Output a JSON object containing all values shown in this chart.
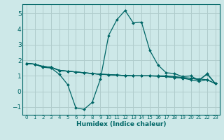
{
  "xlabel": "Humidex (Indice chaleur)",
  "bg_color": "#cde8e8",
  "line_color": "#006666",
  "grid_color": "#b0cccc",
  "xlim": [
    -0.5,
    23.5
  ],
  "ylim": [
    -1.5,
    5.6
  ],
  "yticks": [
    -1,
    0,
    1,
    2,
    3,
    4,
    5
  ],
  "xticks": [
    0,
    1,
    2,
    3,
    4,
    5,
    6,
    7,
    8,
    9,
    10,
    11,
    12,
    13,
    14,
    15,
    16,
    17,
    18,
    19,
    20,
    21,
    22,
    23
  ],
  "series": [
    {
      "x": [
        0,
        1,
        2,
        3,
        4,
        5,
        6,
        7,
        8,
        9,
        10,
        11,
        12,
        13,
        14,
        15,
        16,
        17,
        18,
        19,
        20,
        21,
        22,
        23
      ],
      "y": [
        1.8,
        1.75,
        1.55,
        1.5,
        1.1,
        0.45,
        -1.05,
        -1.15,
        -0.7,
        0.8,
        3.6,
        4.6,
        5.2,
        4.4,
        4.45,
        2.65,
        1.7,
        1.2,
        1.15,
        0.95,
        1.0,
        0.7,
        1.15,
        0.5
      ]
    },
    {
      "x": [
        0,
        1,
        2,
        3,
        4,
        5,
        6,
        7,
        8,
        9,
        10,
        11,
        12,
        13,
        14,
        15,
        16,
        17,
        18,
        19,
        20,
        21,
        22,
        23
      ],
      "y": [
        1.8,
        1.75,
        1.6,
        1.55,
        1.35,
        1.3,
        1.25,
        1.2,
        1.15,
        1.1,
        1.08,
        1.05,
        1.02,
        1.0,
        1.0,
        1.0,
        1.0,
        1.0,
        0.95,
        0.9,
        0.85,
        0.8,
        0.75,
        0.5
      ]
    },
    {
      "x": [
        0,
        1,
        2,
        3,
        4,
        5,
        6,
        7,
        8,
        9,
        10,
        11,
        12,
        13,
        14,
        15,
        16,
        17,
        18,
        19,
        20,
        21,
        22,
        23
      ],
      "y": [
        1.8,
        1.75,
        1.6,
        1.55,
        1.35,
        1.3,
        1.25,
        1.2,
        1.15,
        1.1,
        1.08,
        1.05,
        1.02,
        1.0,
        1.0,
        1.0,
        0.98,
        0.95,
        0.9,
        0.85,
        0.75,
        0.65,
        0.75,
        0.5
      ]
    },
    {
      "x": [
        0,
        1,
        2,
        3,
        4,
        5,
        6,
        7,
        8,
        9,
        10,
        11,
        12,
        13,
        14,
        15,
        16,
        17,
        18,
        19,
        20,
        21,
        22,
        23
      ],
      "y": [
        1.8,
        1.75,
        1.6,
        1.55,
        1.35,
        1.3,
        1.25,
        1.2,
        1.15,
        1.1,
        1.08,
        1.05,
        1.02,
        1.0,
        1.0,
        1.0,
        0.98,
        0.95,
        0.9,
        0.85,
        0.85,
        0.75,
        1.1,
        0.5
      ]
    }
  ]
}
